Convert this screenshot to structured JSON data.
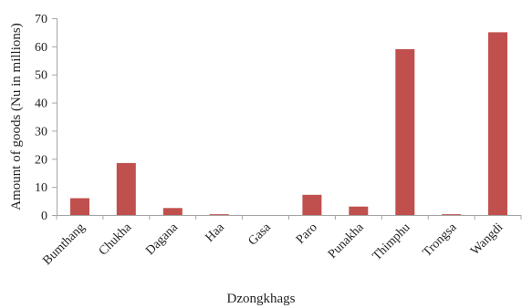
{
  "chart_data": {
    "type": "bar",
    "title": "",
    "xlabel": "Dzongkhags",
    "ylabel": "Amount of goods (Nu in millions)",
    "categories": [
      "Bumthang",
      "Chukha",
      "Dagana",
      "Haa",
      "Gasa",
      "Paro",
      "Punakha",
      "Thimphu",
      "Trongsa",
      "Wangdi"
    ],
    "series": [
      {
        "values": [
          6,
          18.5,
          2.5,
          0.3,
          0,
          7.2,
          3,
          59,
          0.3,
          65
        ],
        "color": "#c0504d"
      }
    ],
    "yticks": [
      "0",
      "10",
      "20",
      "30",
      "40",
      "50",
      "60",
      "70"
    ],
    "ylim": [
      0,
      70
    ],
    "grid": false,
    "legend": "none"
  }
}
